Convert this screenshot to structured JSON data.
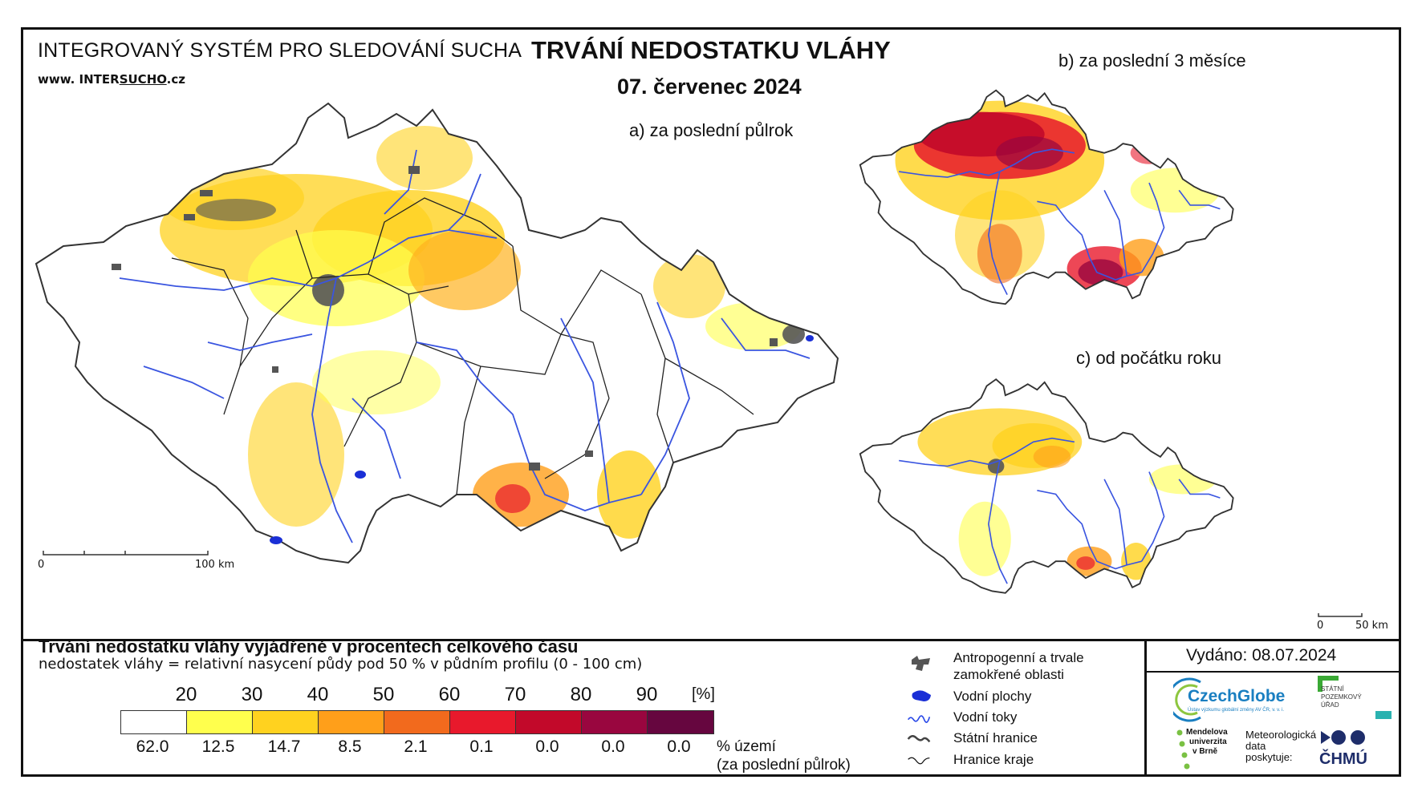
{
  "header": {
    "system_title": "INTEGROVANÝ SYSTÉM PRO SLEDOVÁNÍ SUCHA",
    "web_prefix": "www. INTER",
    "web_brand": "SUCHO",
    "web_suffix": ".cz",
    "main_title": "TRVÁNÍ NEDOSTATKU VLÁHY",
    "date": "07. červenec 2024"
  },
  "maps": {
    "a_label": "a) za poslední půlrok",
    "b_label": "b) za poslední 3 měsíce",
    "c_label": "c) od počátku roku",
    "scale_main_zero": "0",
    "scale_main_end": "100 km",
    "scale_small_zero": "0",
    "scale_small_end": "50 km"
  },
  "legend": {
    "title": "Trvání nedostatku vláhy vyjádřené v procentech celkového času",
    "subtitle": "nedostatek vláhy = relativní nasycení půdy pod 50 % v půdním profilu (0 - 100 cm)",
    "ticks": [
      "20",
      "30",
      "40",
      "50",
      "60",
      "70",
      "80",
      "90"
    ],
    "unit": "[%]",
    "colors": [
      "#ffffff",
      "#ffff4d",
      "#ffd21f",
      "#ff9f1a",
      "#f26a1d",
      "#e8192c",
      "#c2092a",
      "#99063f",
      "#66063f"
    ],
    "values": [
      "62.0",
      "12.5",
      "14.7",
      "8.5",
      "2.1",
      "0.1",
      "0.0",
      "0.0",
      "0.0"
    ],
    "area_label_1": "% území",
    "area_label_2": "(za poslední půlrok)"
  },
  "map_key": {
    "urban": "Antropogenní a trvale",
    "urban_2": "zamokřené oblasti",
    "water_bodies": "Vodní plochy",
    "rivers": "Vodní toky",
    "state_border": "Státní hranice",
    "region_border": "Hranice kraje"
  },
  "footer": {
    "issued": "Vydáno: 08.07.2024",
    "czechglobe": "CzechGlobe",
    "czechglobe_sub": "Ústav výzkumu globální změny AV ČR, v. v. i.",
    "spu_1": "STÁTNÍ",
    "spu_2": "POZEMKOVÝ",
    "spu_3": "ÚŘAD",
    "mendel_1": "Mendelova",
    "mendel_2": "univerzita",
    "mendel_3": "v Brně",
    "meteo_1": "Meteorologická",
    "meteo_2": "data",
    "meteo_3": "poskytuje:",
    "chmu": "ČHMÚ"
  }
}
